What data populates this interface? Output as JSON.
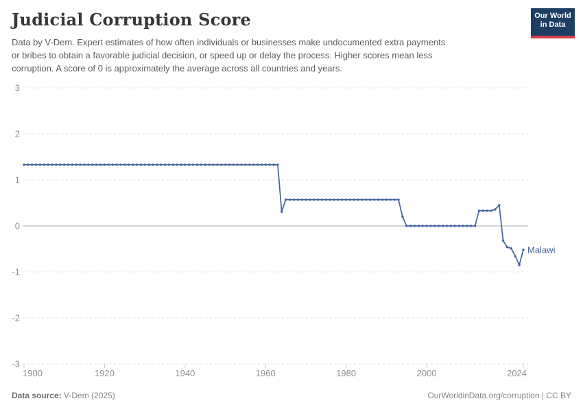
{
  "header": {
    "title": "Judicial Corruption Score",
    "subtitle_lines": [
      "Data by V-Dem. Expert estimates of how often individuals or businesses make undocumented extra payments",
      "or bribes to obtain a favorable judicial decision, or speed up or delay the process. Higher scores mean less",
      "corruption. A score of 0 is approximately the average across all countries and years."
    ],
    "logo": {
      "line1": "Our World",
      "line2": "in Data"
    }
  },
  "chart_data": {
    "type": "line",
    "title": "Judicial Corruption Score",
    "xlabel": "",
    "ylabel": "",
    "xlim": [
      1900,
      2024
    ],
    "ylim": [
      -3,
      3
    ],
    "grid": "horizontal-dashed",
    "x_ticks": [
      1900,
      1920,
      1940,
      1960,
      1980,
      2000,
      2024
    ],
    "y_ticks": [
      3,
      2,
      1,
      0,
      -1,
      -2,
      -3
    ],
    "legend_position": "end-of-line-label",
    "series": [
      {
        "name": "Malawi",
        "color": "#44639e",
        "segments": [
          {
            "from": 1900,
            "to": 1963,
            "value": 1.33
          },
          {
            "from": 1964,
            "to": 1964,
            "value": 0.31
          },
          {
            "from": 1965,
            "to": 1993,
            "value": 0.57
          },
          {
            "from": 1994,
            "to": 1994,
            "value": 0.2
          },
          {
            "from": 1995,
            "to": 2012,
            "value": 0.0
          },
          {
            "from": 2013,
            "to": 2016,
            "value": 0.33
          },
          {
            "from": 2017,
            "to": 2017,
            "value": 0.36
          },
          {
            "from": 2018,
            "to": 2018,
            "value": 0.45
          },
          {
            "from": 2019,
            "to": 2019,
            "value": -0.32
          },
          {
            "from": 2020,
            "to": 2020,
            "value": -0.46
          },
          {
            "from": 2021,
            "to": 2021,
            "value": -0.49
          },
          {
            "from": 2022,
            "to": 2022,
            "value": -0.66
          },
          {
            "from": 2023,
            "to": 2023,
            "value": -0.85
          },
          {
            "from": 2024,
            "to": 2024,
            "value": -0.52
          }
        ]
      }
    ],
    "end_label": "Malawi"
  },
  "footer": {
    "source_label": "Data source:",
    "source_value": " V-Dem (2025)",
    "credit": "OurWorldinData.org/corruption | CC BY"
  },
  "colors": {
    "line": "#44639e",
    "grid": "#e0e0e0",
    "zero_line": "#a8a8a8",
    "axis_text": "#8e8e8e",
    "tick": "#cccccc",
    "logo_bg": "#1d3d63",
    "logo_red": "#d73c4c"
  }
}
